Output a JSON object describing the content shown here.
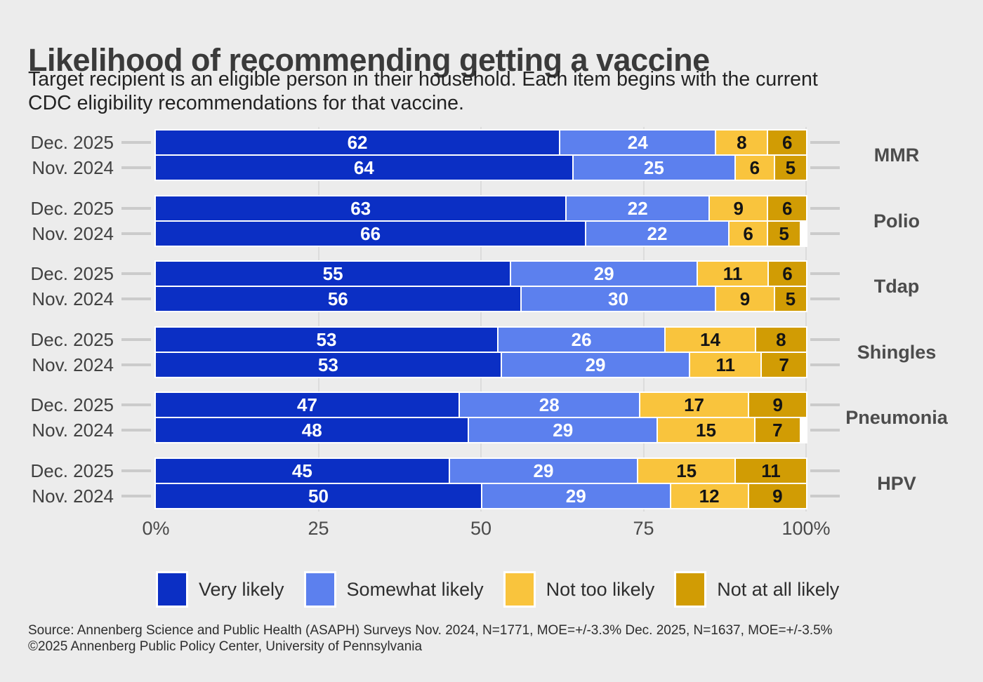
{
  "title": "Likelihood of recommending getting a vaccine",
  "subtitle": {
    "line1": "Target recipient is an eligible person in their household. Each item begins with the current",
    "line2": "CDC eligibility recommendations for that vaccine."
  },
  "chart_data": {
    "type": "bar",
    "stacked": true,
    "orientation": "horizontal",
    "unit": "percent",
    "xlim": [
      0,
      100
    ],
    "x_ticks": [
      "0%",
      "25",
      "50",
      "75",
      "100%"
    ],
    "x_tick_values": [
      0,
      25,
      50,
      75,
      100
    ],
    "grid": "vertical-light",
    "legend_position": "bottom",
    "series_labels": [
      "Very likely",
      "Somewhat likely",
      "Not too likely",
      "Not at all likely"
    ],
    "series_colors": [
      "#0b2fc4",
      "#5c80ee",
      "#f9c43d",
      "#d19c04"
    ],
    "value_label_colors": [
      "#ffffff",
      "#ffffff",
      "#141414",
      "#141414"
    ],
    "groups": [
      {
        "label": "MMR",
        "rows": [
          {
            "label": "Dec. 2025",
            "values": [
              62,
              24,
              8,
              6
            ]
          },
          {
            "label": "Nov. 2024",
            "values": [
              64,
              25,
              6,
              5
            ]
          }
        ]
      },
      {
        "label": "Polio",
        "rows": [
          {
            "label": "Dec. 2025",
            "values": [
              63,
              22,
              9,
              6
            ]
          },
          {
            "label": "Nov. 2024",
            "values": [
              66,
              22,
              6,
              5
            ]
          }
        ]
      },
      {
        "label": "Tdap",
        "rows": [
          {
            "label": "Dec. 2025",
            "values": [
              55,
              29,
              11,
              6
            ]
          },
          {
            "label": "Nov. 2024",
            "values": [
              56,
              30,
              9,
              5
            ]
          }
        ]
      },
      {
        "label": "Shingles",
        "rows": [
          {
            "label": "Dec. 2025",
            "values": [
              53,
              26,
              14,
              8
            ]
          },
          {
            "label": "Nov. 2024",
            "values": [
              53,
              29,
              11,
              7
            ]
          }
        ]
      },
      {
        "label": "Pneumonia",
        "rows": [
          {
            "label": "Dec. 2025",
            "values": [
              47,
              28,
              17,
              9
            ]
          },
          {
            "label": "Nov. 2024",
            "values": [
              48,
              29,
              15,
              7
            ]
          }
        ]
      },
      {
        "label": "HPV",
        "rows": [
          {
            "label": "Dec. 2025",
            "values": [
              45,
              29,
              15,
              11
            ]
          },
          {
            "label": "Nov. 2024",
            "values": [
              50,
              29,
              12,
              9
            ]
          }
        ]
      }
    ]
  },
  "legend": {
    "items": [
      {
        "label": "Very likely",
        "color": "#0b2fc4"
      },
      {
        "label": "Somewhat likely",
        "color": "#5c80ee"
      },
      {
        "label": "Not too likely",
        "color": "#f9c43d"
      },
      {
        "label": "Not at all likely",
        "color": "#d19c04"
      }
    ]
  },
  "source": {
    "line1": "Source: Annenberg Science and Public Health (ASAPH) Surveys Nov. 2024, N=1771, MOE=+/-3.3% Dec. 2025, N=1637, MOE=+/-3.5%",
    "line2": "©2025 Annenberg Public Policy Center, University of Pennsylvania"
  },
  "colors": {
    "background": "#ececec",
    "panel": "#ffffff",
    "title_text": "#3a3a3a",
    "axis_text": "#4a4a4a",
    "tick_dash": "#cbcbcb",
    "gridline": "#dcdcdc"
  }
}
